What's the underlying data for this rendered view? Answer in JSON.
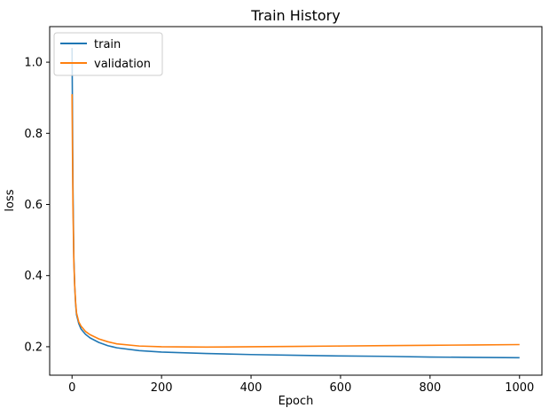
{
  "chart_data": {
    "type": "line",
    "title": "Train History",
    "xlabel": "Epoch",
    "ylabel": "loss",
    "xlim": [
      -50,
      1050
    ],
    "ylim": [
      0.12,
      1.1
    ],
    "xticks": [
      0,
      200,
      400,
      600,
      800,
      1000
    ],
    "yticks": [
      0.2,
      0.4,
      0.6,
      0.8,
      1.0
    ],
    "xtick_labels": [
      "0",
      "200",
      "400",
      "600",
      "800",
      "1000"
    ],
    "ytick_labels": [
      "0.2",
      "0.4",
      "0.6",
      "0.8",
      "1.0"
    ],
    "grid": false,
    "legend_position": "top-left",
    "series": [
      {
        "name": "train",
        "color": "#1f77b4",
        "x": [
          0,
          1,
          2,
          4,
          6,
          8,
          10,
          15,
          20,
          30,
          40,
          60,
          80,
          100,
          150,
          200,
          300,
          400,
          500,
          600,
          700,
          800,
          900,
          1000
        ],
        "y": [
          1.04,
          0.85,
          0.65,
          0.45,
          0.37,
          0.32,
          0.29,
          0.265,
          0.25,
          0.235,
          0.225,
          0.212,
          0.203,
          0.197,
          0.189,
          0.185,
          0.181,
          0.178,
          0.176,
          0.174,
          0.173,
          0.171,
          0.17,
          0.169
        ]
      },
      {
        "name": "validation",
        "color": "#ff7f0e",
        "x": [
          0,
          1,
          2,
          4,
          6,
          8,
          10,
          15,
          20,
          30,
          40,
          60,
          80,
          100,
          150,
          200,
          300,
          400,
          500,
          600,
          700,
          800,
          900,
          1000
        ],
        "y": [
          0.91,
          0.75,
          0.6,
          0.44,
          0.37,
          0.325,
          0.295,
          0.27,
          0.258,
          0.243,
          0.234,
          0.222,
          0.214,
          0.208,
          0.202,
          0.2,
          0.199,
          0.2,
          0.201,
          0.202,
          0.203,
          0.204,
          0.205,
          0.206
        ]
      }
    ]
  }
}
